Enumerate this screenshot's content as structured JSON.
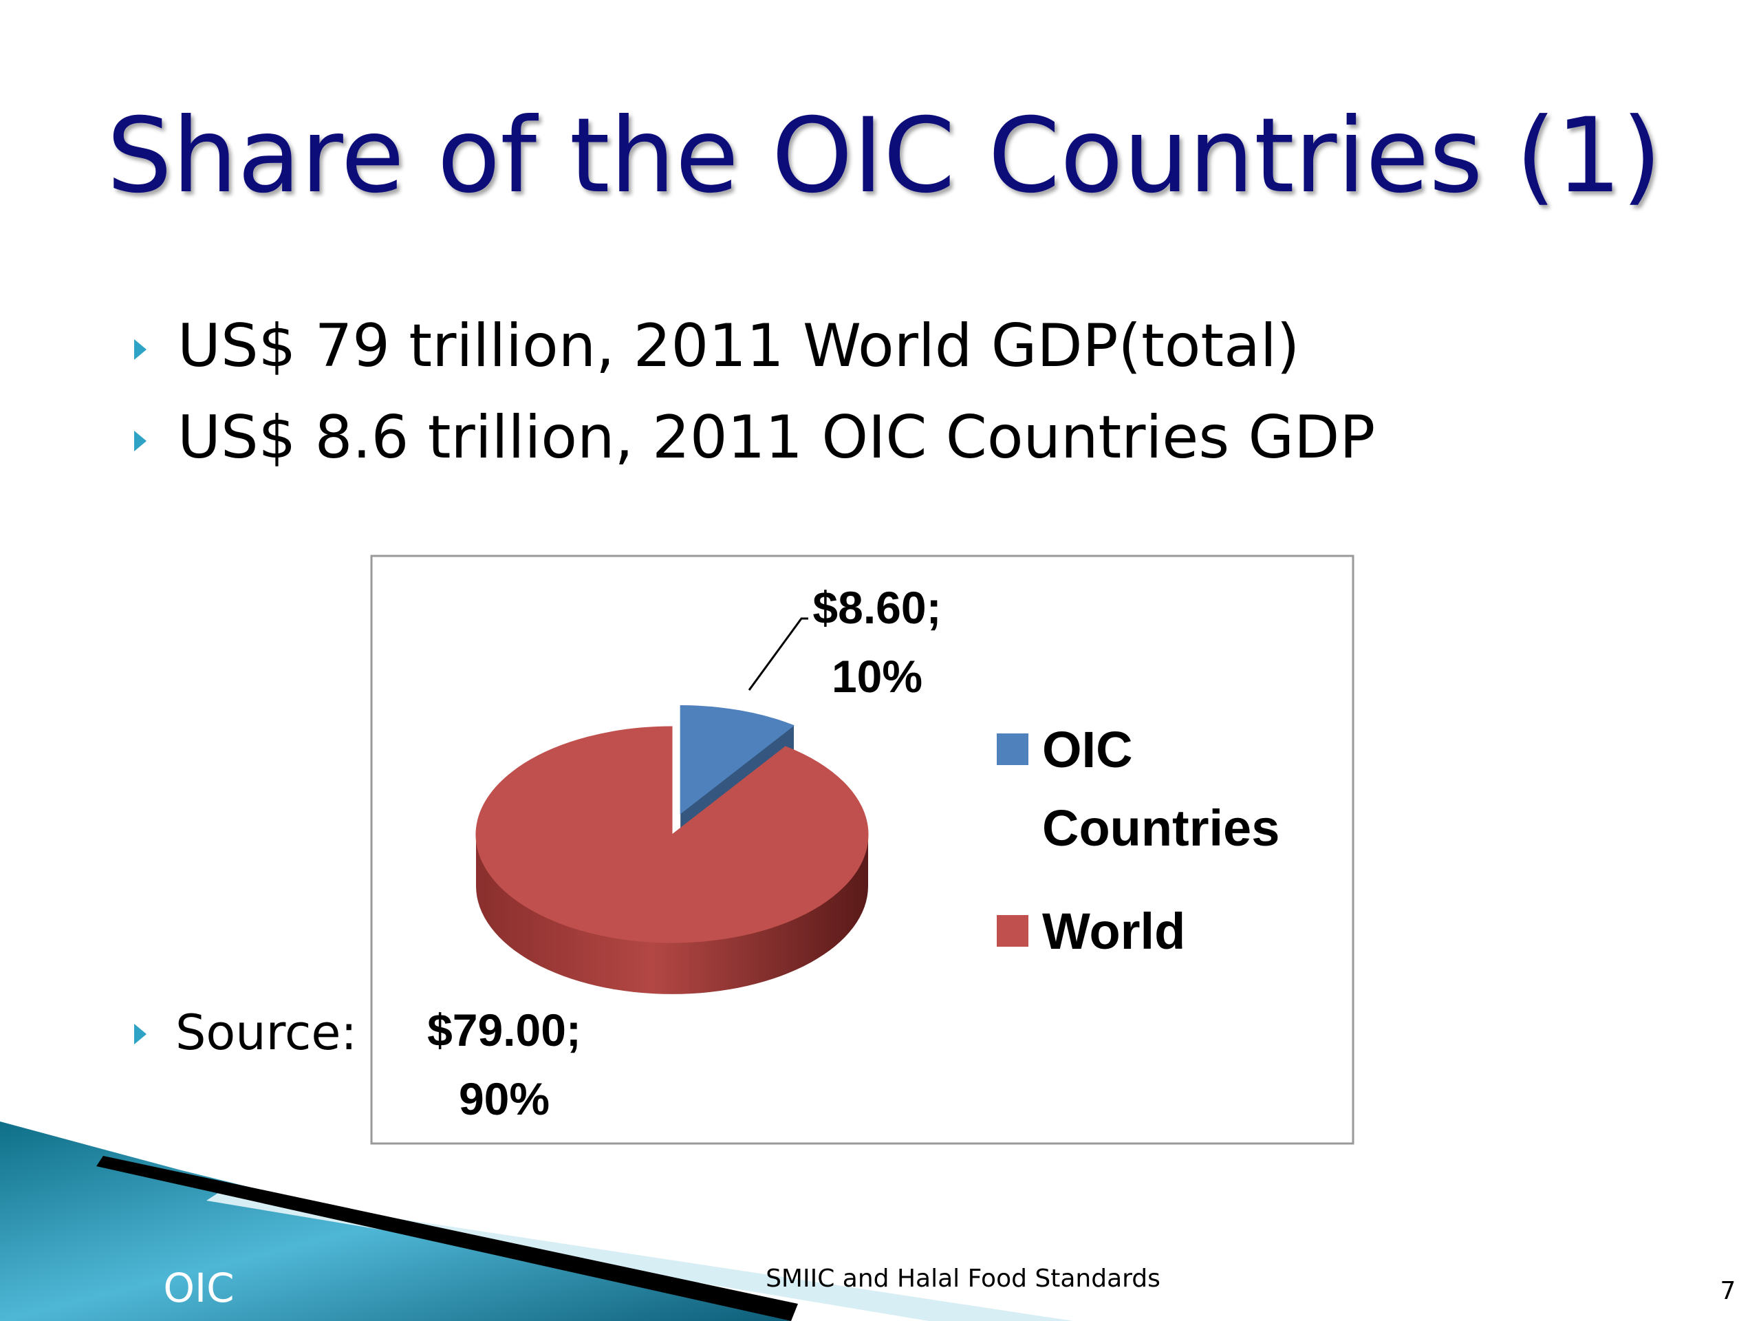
{
  "title": "Share of the OIC Countries (1)",
  "bullets": [
    "US$ 79 trillion, 2011 World GDP(total)",
    "US$ 8.6 trillion, 2011 OIC Countries GDP"
  ],
  "source_label": "Source:",
  "footer": {
    "left": "OIC",
    "center": "SMIIC and Halal Food Standards",
    "page": "7"
  },
  "chart_data": {
    "type": "pie",
    "categories": [
      "OIC Countries",
      "World"
    ],
    "values": [
      8.6,
      79
    ],
    "value_labels": [
      "$8.60; 10%",
      "$79.00; 90%"
    ],
    "colors": [
      "#4f81bd",
      "#c0504d"
    ],
    "legend": "right"
  }
}
